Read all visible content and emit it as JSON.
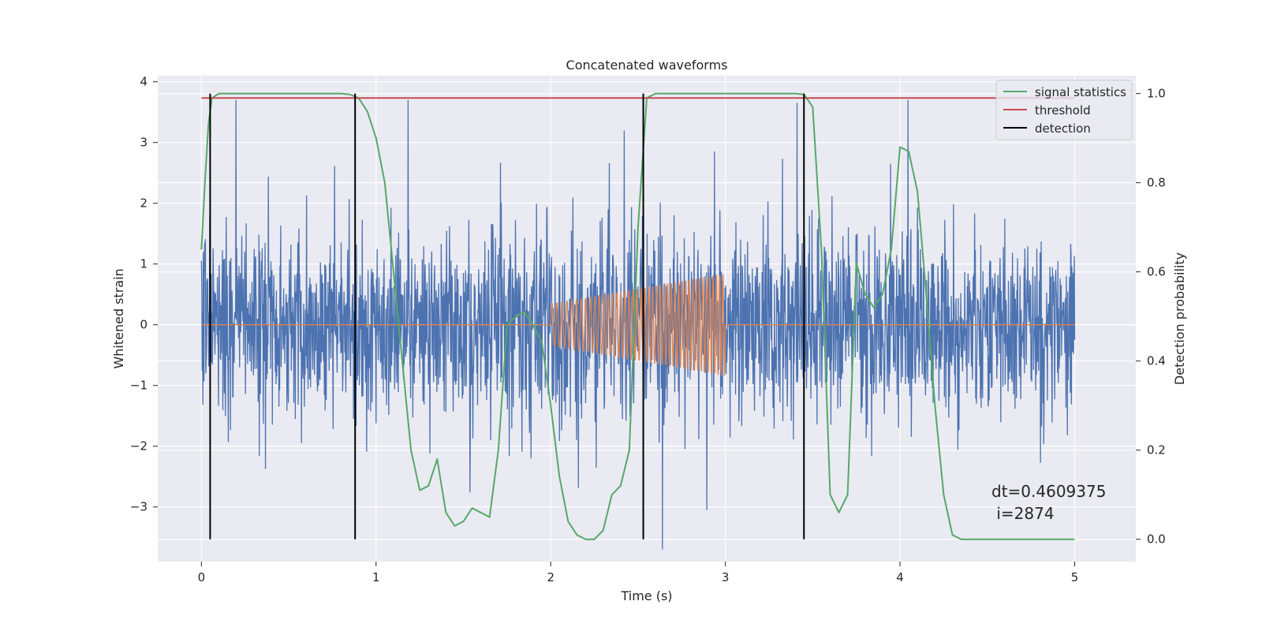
{
  "chart_data": {
    "type": "line",
    "title": "Concatenated waveforms",
    "xlabel": "Time (s)",
    "ylabel_left": "Whitened strain",
    "ylabel_right": "Detection probability",
    "xlim": [
      -0.25,
      5.35
    ],
    "ylim_left": [
      -3.9,
      4.1
    ],
    "ylim_right": [
      -0.05,
      1.04
    ],
    "x_ticks": [
      0,
      1,
      2,
      3,
      4,
      5
    ],
    "y_ticks_left": [
      -3,
      -2,
      -1,
      0,
      1,
      2,
      3,
      4
    ],
    "y_ticks_right": [
      0.0,
      0.2,
      0.4,
      0.6,
      0.8,
      1.0
    ],
    "x_tick_labels": [
      "0",
      "1",
      "2",
      "3",
      "4",
      "5"
    ],
    "y_tick_labels_left": [
      "−3",
      "−2",
      "−1",
      "0",
      "1",
      "2",
      "3",
      "4"
    ],
    "y_tick_labels_right": [
      "0.0",
      "0.2",
      "0.4",
      "0.6",
      "0.8",
      "1.0"
    ],
    "grid": true,
    "legend_position": "top-right",
    "series": [
      {
        "name": "",
        "axis": "left",
        "color": "#4c72b0",
        "kind": "noise",
        "x_range": [
          0,
          5
        ],
        "typical_amplitude": 0.75,
        "max_abs": 3.7
      },
      {
        "name": "",
        "axis": "left",
        "color": "#dd8452",
        "kind": "chirp",
        "x_range": [
          0,
          5
        ],
        "chirp_start": 2.0,
        "chirp_end": 3.0,
        "amplitude_start": 0.35,
        "amplitude_end": 0.85
      },
      {
        "name": "signal statistics",
        "axis": "right",
        "color": "#55a868",
        "x": [
          0.0,
          0.02,
          0.04,
          0.06,
          0.1,
          0.2,
          0.4,
          0.6,
          0.75,
          0.8,
          0.85,
          0.9,
          0.95,
          1.0,
          1.05,
          1.1,
          1.15,
          1.2,
          1.25,
          1.3,
          1.35,
          1.4,
          1.45,
          1.5,
          1.55,
          1.6,
          1.65,
          1.7,
          1.75,
          1.8,
          1.85,
          1.9,
          1.95,
          2.0,
          2.05,
          2.1,
          2.15,
          2.2,
          2.25,
          2.3,
          2.35,
          2.4,
          2.45,
          2.5,
          2.55,
          2.6,
          2.7,
          2.8,
          2.9,
          3.0,
          3.1,
          3.2,
          3.3,
          3.4,
          3.45,
          3.5,
          3.55,
          3.6,
          3.65,
          3.7,
          3.75,
          3.8,
          3.85,
          3.9,
          3.95,
          4.0,
          4.05,
          4.1,
          4.15,
          4.2,
          4.25,
          4.3,
          4.35,
          4.4,
          4.6,
          5.0
        ],
        "values": [
          0.65,
          0.8,
          0.93,
          0.99,
          1.0,
          1.0,
          1.0,
          1.0,
          1.0,
          1.0,
          0.998,
          0.99,
          0.96,
          0.9,
          0.8,
          0.6,
          0.4,
          0.2,
          0.11,
          0.12,
          0.18,
          0.06,
          0.03,
          0.04,
          0.07,
          0.06,
          0.05,
          0.2,
          0.48,
          0.5,
          0.51,
          0.48,
          0.44,
          0.3,
          0.14,
          0.04,
          0.01,
          0.0,
          0.0,
          0.02,
          0.1,
          0.12,
          0.2,
          0.7,
          0.99,
          1.0,
          1.0,
          1.0,
          1.0,
          1.0,
          1.0,
          1.0,
          1.0,
          1.0,
          0.998,
          0.97,
          0.65,
          0.1,
          0.06,
          0.1,
          0.62,
          0.55,
          0.52,
          0.55,
          0.65,
          0.88,
          0.87,
          0.78,
          0.55,
          0.3,
          0.1,
          0.01,
          0.0,
          0.0,
          0.0,
          0.0
        ]
      },
      {
        "name": "threshold",
        "axis": "right",
        "color": "#c44e52",
        "x": [
          0,
          5
        ],
        "values": [
          0.99,
          0.99
        ]
      },
      {
        "name": "detection",
        "axis": "right",
        "color": "#000000",
        "kind": "vlines",
        "x": [
          0.05,
          0.88,
          2.53,
          3.45
        ],
        "y_range": [
          0.0,
          1.0
        ]
      }
    ],
    "annotation": {
      "line1": "dt=0.4609375",
      "line2": " i=2874"
    }
  }
}
